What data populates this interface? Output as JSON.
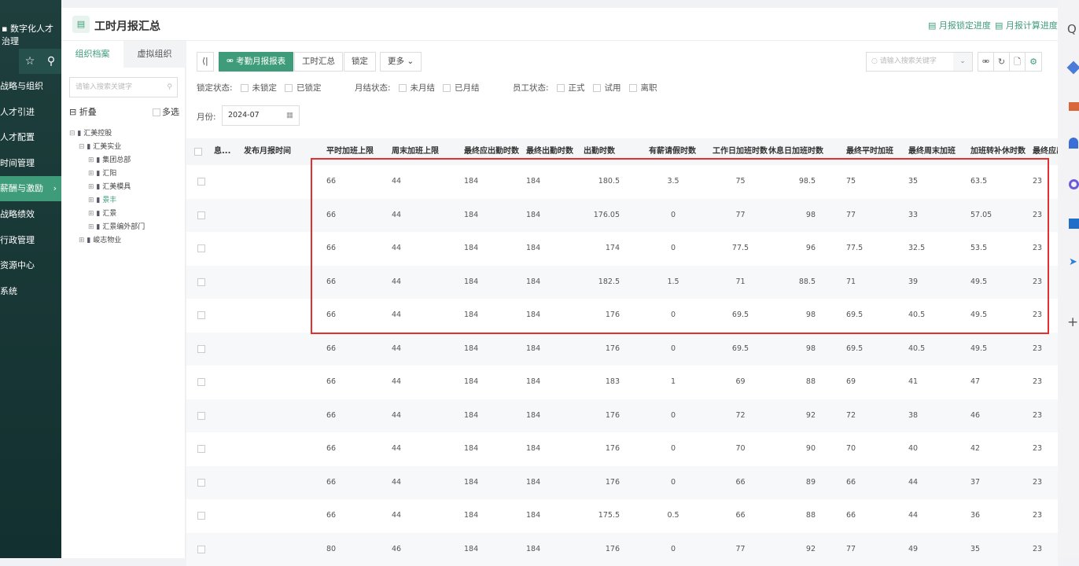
{
  "nav": {
    "brand": "数字化人才治理",
    "items": [
      "战略与组织",
      "人才引进",
      "人才配置",
      "时间管理",
      "薪酬与激励",
      "战略绩效",
      "行政管理",
      "资源中心",
      "系统"
    ],
    "active": 4
  },
  "header": {
    "title": "工时月报汇总",
    "links": [
      "月报锁定进度",
      "月报计算进度"
    ]
  },
  "tree": {
    "tabs": [
      "组织档案",
      "虚拟组织"
    ],
    "search_placeholder": "请输入搜索关键字",
    "collapse": "折叠",
    "multi": "多选",
    "nodes": [
      {
        "label": "汇美控股",
        "level": 0
      },
      {
        "label": "汇美实业",
        "level": 1
      },
      {
        "label": "集团总部",
        "level": 2
      },
      {
        "label": "汇阳",
        "level": 2
      },
      {
        "label": "汇美模具",
        "level": 2
      },
      {
        "label": "景丰",
        "level": 2,
        "selected": true
      },
      {
        "label": "汇景",
        "level": 2
      },
      {
        "label": "汇景编外部门",
        "level": 2
      },
      {
        "label": "峻志物业",
        "level": 1
      }
    ]
  },
  "toolbar": {
    "buttons": [
      "考勤月报报表",
      "工时汇总",
      "锁定",
      "更多"
    ],
    "search_placeholder": "请输入搜索关键字"
  },
  "filters": {
    "lock_label": "锁定状态:",
    "lock": [
      "未锁定",
      "已锁定"
    ],
    "month_label": "月结状态:",
    "month": [
      "未月结",
      "已月结"
    ],
    "emp_label": "员工状态:",
    "emp": [
      "正式",
      "试用",
      "离职"
    ],
    "period_label": "月份:",
    "period": "2024-07"
  },
  "table": {
    "headers": [
      "息...",
      "发布月报时间",
      "平时加班上限",
      "周末加班上限",
      "最终应出勤时数",
      "最终出勤时数",
      "出勤时数",
      "有薪请假时数",
      "工作日加班时数",
      "休息日加班时数",
      "最终平时加班",
      "最终周末加班",
      "加班转补休时数",
      "最终应出"
    ],
    "rows": [
      [
        "",
        "",
        "66",
        "44",
        "184",
        "184",
        "180.5",
        "3.5",
        "75",
        "98.5",
        "75",
        "35",
        "63.5",
        "23"
      ],
      [
        "",
        "",
        "66",
        "44",
        "184",
        "184",
        "176.05",
        "0",
        "77",
        "98",
        "77",
        "33",
        "57.05",
        "23"
      ],
      [
        "",
        "",
        "66",
        "44",
        "184",
        "184",
        "174",
        "0",
        "77.5",
        "96",
        "77.5",
        "32.5",
        "53.5",
        "23"
      ],
      [
        "",
        "",
        "66",
        "44",
        "184",
        "184",
        "182.5",
        "1.5",
        "71",
        "88.5",
        "71",
        "39",
        "49.5",
        "23"
      ],
      [
        "",
        "",
        "66",
        "44",
        "184",
        "184",
        "176",
        "0",
        "69.5",
        "98",
        "69.5",
        "40.5",
        "49.5",
        "23"
      ],
      [
        "",
        "",
        "66",
        "44",
        "184",
        "184",
        "176",
        "0",
        "69.5",
        "98",
        "69.5",
        "40.5",
        "49.5",
        "23"
      ],
      [
        "",
        "",
        "66",
        "44",
        "184",
        "184",
        "183",
        "1",
        "69",
        "88",
        "69",
        "41",
        "47",
        "23"
      ],
      [
        "",
        "",
        "66",
        "44",
        "184",
        "184",
        "176",
        "0",
        "72",
        "92",
        "72",
        "38",
        "46",
        "23"
      ],
      [
        "",
        "",
        "66",
        "44",
        "184",
        "184",
        "176",
        "0",
        "70",
        "90",
        "70",
        "40",
        "42",
        "23"
      ],
      [
        "",
        "",
        "66",
        "44",
        "184",
        "184",
        "176",
        "0",
        "66",
        "89",
        "66",
        "44",
        "37",
        "23"
      ],
      [
        "",
        "",
        "66",
        "44",
        "184",
        "184",
        "175.5",
        "0.5",
        "66",
        "88",
        "66",
        "44",
        "36",
        "23"
      ],
      [
        "",
        "",
        "80",
        "46",
        "184",
        "184",
        "176",
        "0",
        "77",
        "92",
        "77",
        "49",
        "35",
        "23"
      ]
    ]
  },
  "colors": {
    "accent": "#3f9c7b",
    "highlight": "#e52e2e",
    "nav": "#1e3f3d"
  }
}
